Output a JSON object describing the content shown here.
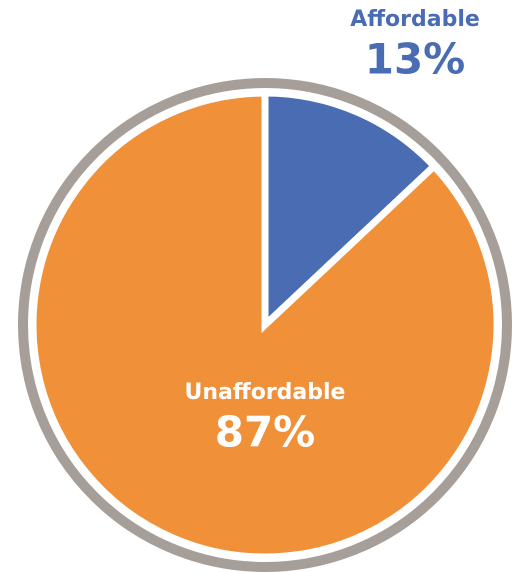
{
  "chart_data": {
    "type": "pie",
    "categories": [
      "Affordable",
      "Unaffordable"
    ],
    "values": [
      13,
      87
    ],
    "value_labels": [
      "13%",
      "87%"
    ],
    "colors": [
      "#4a6cb3",
      "#f0913a"
    ]
  }
}
